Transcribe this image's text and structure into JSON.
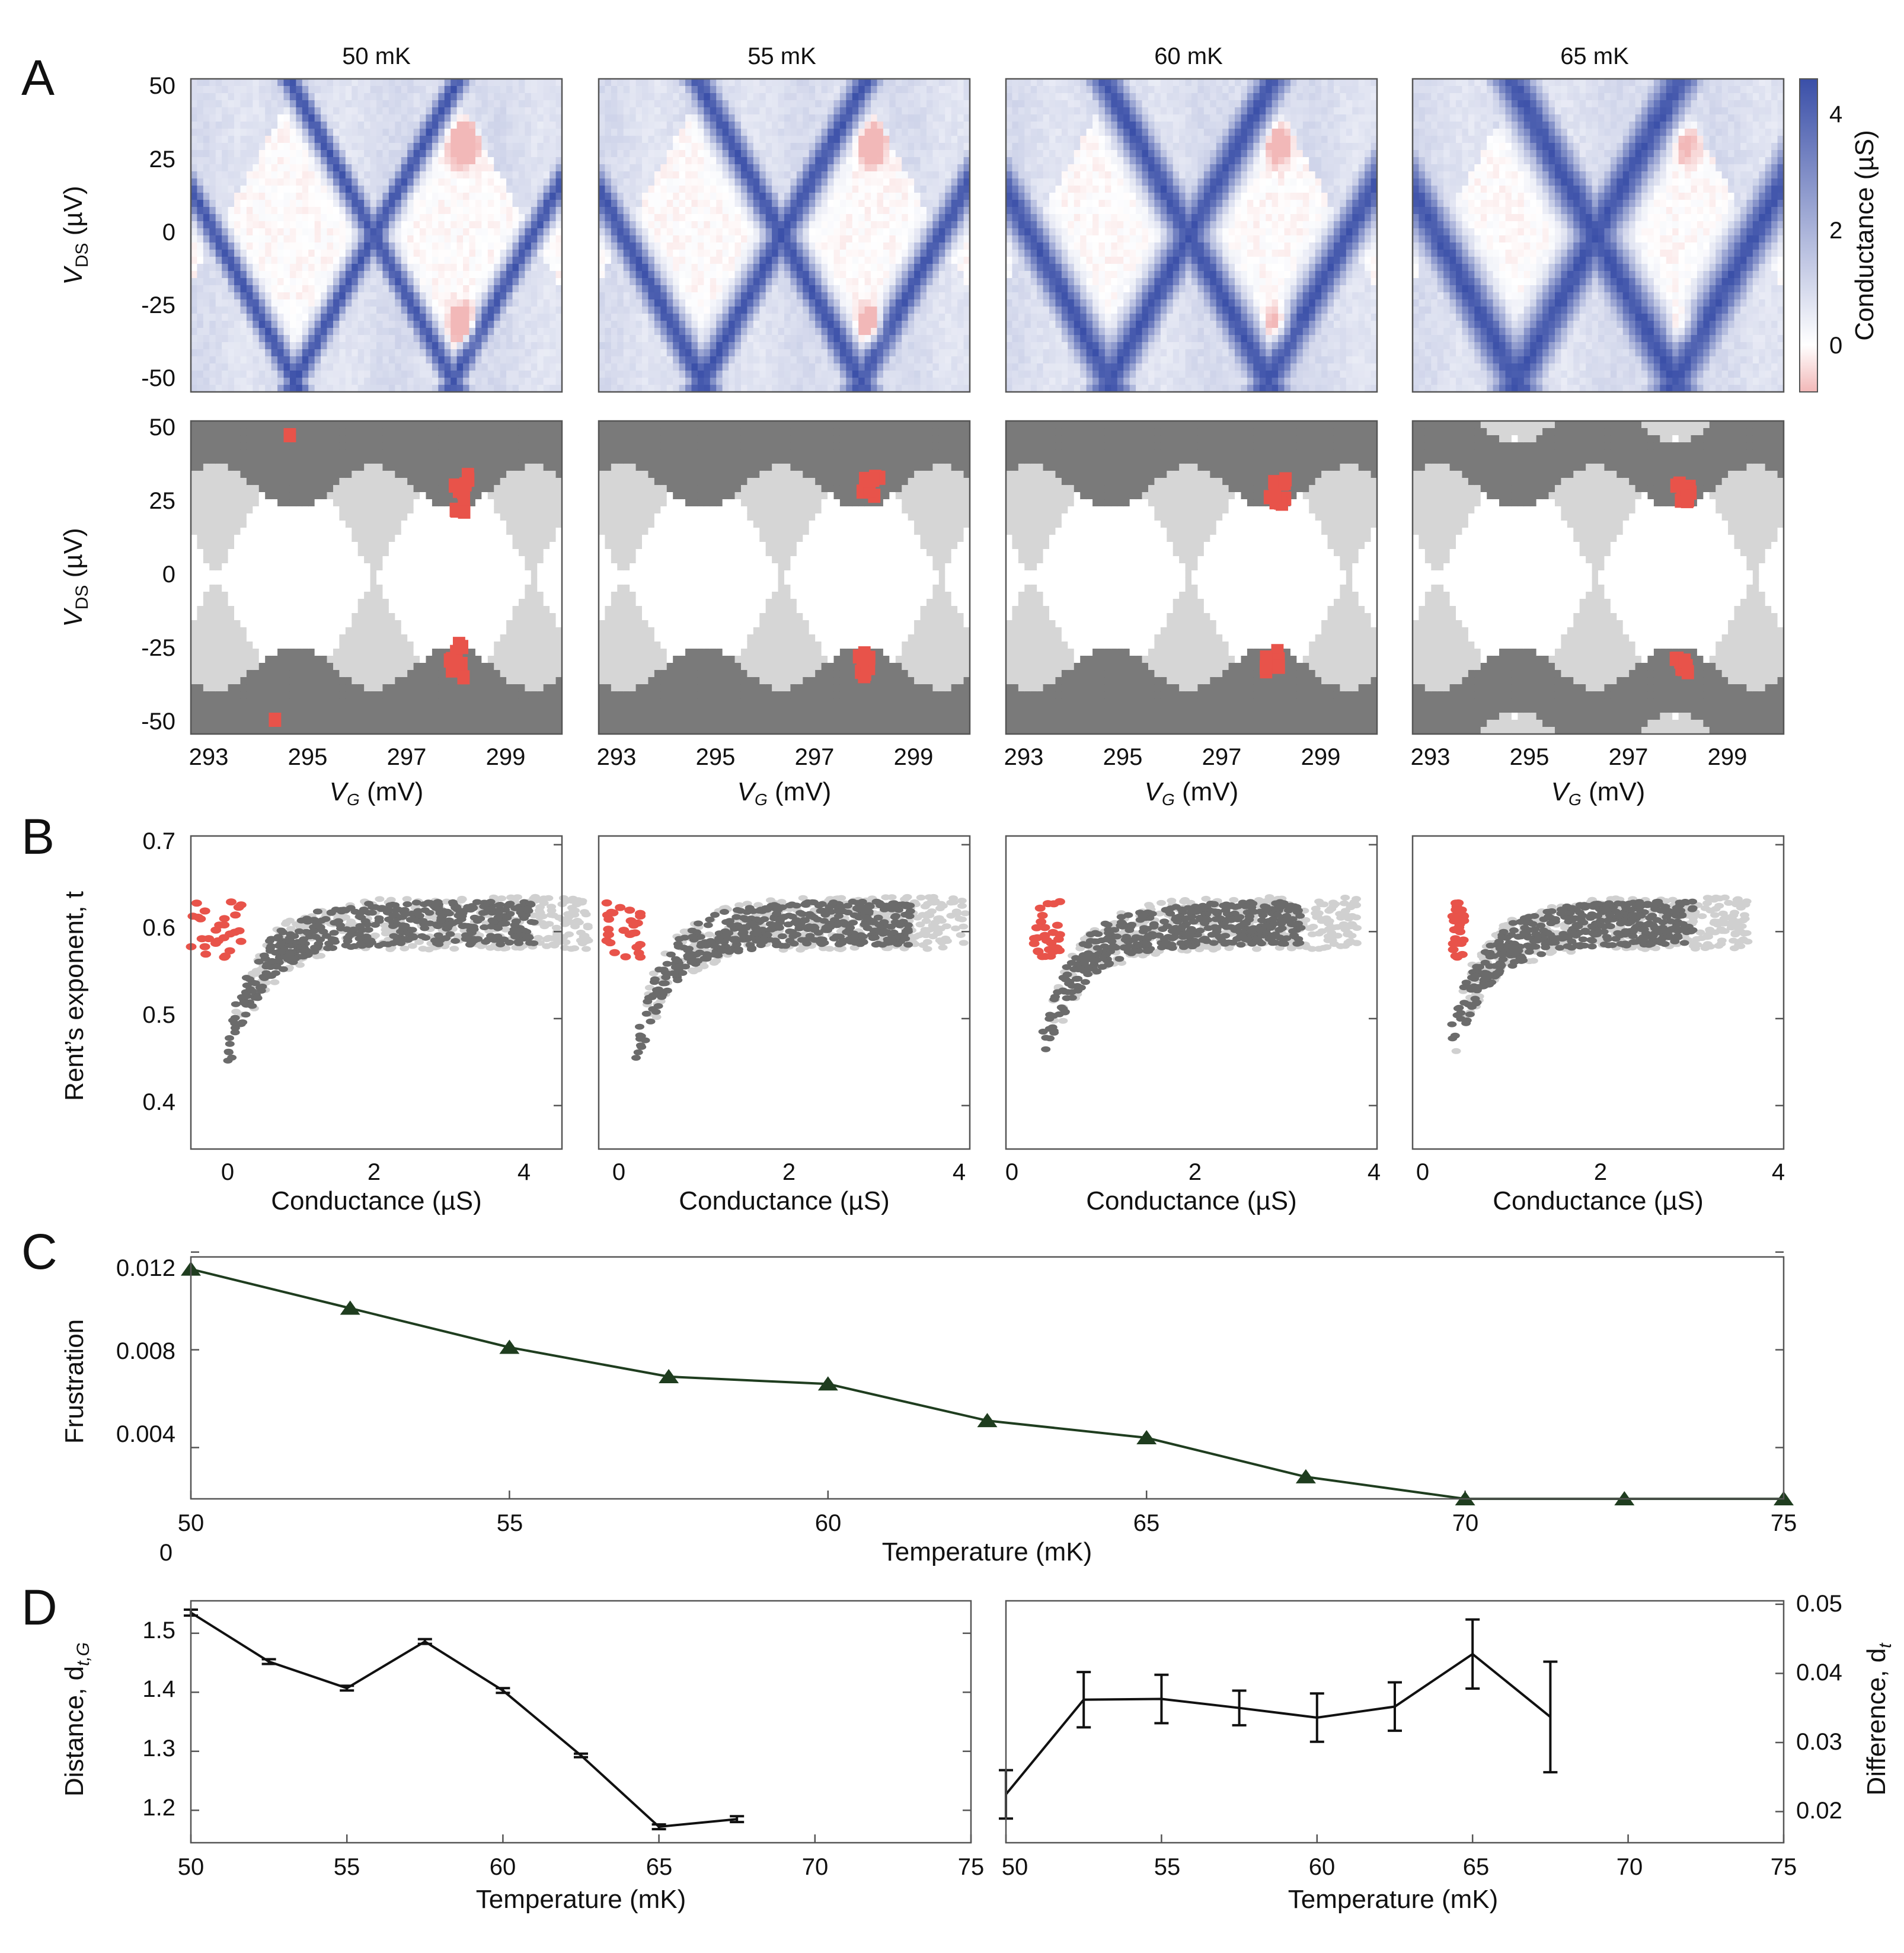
{
  "panel_letters": [
    "A",
    "B",
    "C",
    "D"
  ],
  "chart_data": [
    {
      "panel": "A-top",
      "type": "heatmap",
      "titles": [
        "50 mK",
        "55 mK",
        "60 mK",
        "65 mK"
      ],
      "ylabel_main": "V",
      "ylabel_sub": "DS",
      "ylabel_unit": " (µV)",
      "yticks": [
        50,
        25,
        0,
        -25,
        -50
      ],
      "ylim": [
        -55,
        55
      ],
      "xlim": [
        292.3,
        299.8
      ],
      "colorbar": {
        "label": "Conductance (µS)",
        "ticks": [
          4,
          2,
          0
        ],
        "range": [
          -0.8,
          4.8
        ],
        "colors": [
          "#f2b8b8",
          "#ffffff",
          "#3a4fa8"
        ]
      }
    },
    {
      "panel": "A-bottom",
      "type": "heatmap",
      "ylabel_main": "V",
      "ylabel_sub": "DS",
      "ylabel_unit": " (µV)",
      "yticks": [
        50,
        25,
        0,
        -25,
        -50
      ],
      "xticks": [
        293,
        295,
        297,
        299
      ],
      "xlabel_main": "V",
      "xlabel_sub": "G",
      "xlabel_unit": " (mV)",
      "ylim": [
        -55,
        55
      ],
      "xlim": [
        292.3,
        299.8
      ],
      "band_thickness_uV": [
        30,
        20,
        14,
        10
      ],
      "colors": {
        "dark": "#7a7a7a",
        "light": "#d6d6d6",
        "red": "#e8534a"
      }
    },
    {
      "panel": "B",
      "type": "scatter",
      "ylabel": "Rent’s exponent, t",
      "xlabel": "Conductance (µS)",
      "xticks": [
        0,
        2,
        4
      ],
      "yticks": [
        0.7,
        0.6,
        0.5,
        0.4
      ],
      "xlim": [
        -0.4,
        4.3
      ],
      "ylim": [
        0.35,
        0.71
      ],
      "colors": {
        "dark": "#6b6b6b",
        "light": "#d0d0d0",
        "red": "#e8534a"
      }
    },
    {
      "panel": "C",
      "type": "line",
      "ylabel": "Frustration",
      "xlabel": "Temperature (mK)",
      "x": [
        50,
        52.5,
        55,
        57.5,
        60,
        62.5,
        65,
        67.5,
        70,
        72.5,
        75
      ],
      "y": [
        0.0113,
        0.0097,
        0.0081,
        0.0069,
        0.0066,
        0.0051,
        0.0044,
        0.0028,
        0.0019,
        0.0019,
        0.0019
      ],
      "xticks": [
        50,
        55,
        60,
        65,
        70,
        75
      ],
      "yticks": [
        0.012,
        0.008,
        0.004
      ],
      "ytick_labels": [
        "0.012",
        "0.008",
        "0.004"
      ],
      "extra_label": "0",
      "xlim": [
        50,
        75
      ],
      "ylim": [
        0.0019,
        0.0118
      ],
      "color": "#1f3d1f"
    },
    {
      "panel": "D-left",
      "type": "line",
      "ylabel_main": "Distance, d",
      "ylabel_sub": "t,G",
      "xlabel": "Temperature (mK)",
      "x": [
        50,
        52.5,
        55,
        57.5,
        60,
        62.5,
        65,
        67.5
      ],
      "y": [
        1.535,
        1.452,
        1.407,
        1.486,
        1.403,
        1.293,
        1.172,
        1.185
      ],
      "err": [
        0.005,
        0.004,
        0.004,
        0.004,
        0.004,
        0.003,
        0.004,
        0.005
      ],
      "xticks": [
        50,
        55,
        60,
        65,
        70,
        75
      ],
      "yticks": [
        1.5,
        1.4,
        1.3,
        1.2
      ],
      "ytick_labels": [
        "1.5",
        "1.4",
        "1.3",
        "1.2"
      ],
      "xlim": [
        50,
        75
      ],
      "ylim": [
        1.145,
        1.555
      ],
      "color": "#111111"
    },
    {
      "panel": "D-right",
      "type": "line",
      "ylabel_main": "Difference, d",
      "ylabel_sub": "t",
      "xlabel": "Temperature (mK)",
      "x": [
        50,
        52.5,
        55,
        57.5,
        60,
        62.5,
        65,
        67.5
      ],
      "y": [
        0.0225,
        0.0362,
        0.0363,
        0.035,
        0.0336,
        0.0352,
        0.0428,
        0.0337
      ],
      "err": [
        0.0035,
        0.004,
        0.0035,
        0.0025,
        0.0035,
        0.0035,
        0.005,
        0.008
      ],
      "xticks": [
        50,
        55,
        60,
        65,
        70,
        75
      ],
      "yticks": [
        0.05,
        0.04,
        0.03,
        0.02
      ],
      "ytick_labels": [
        "0.05",
        "0.04",
        "0.03",
        "0.02"
      ],
      "xlim": [
        50,
        75
      ],
      "ylim": [
        0.0155,
        0.0505
      ],
      "color": "#111111"
    }
  ]
}
